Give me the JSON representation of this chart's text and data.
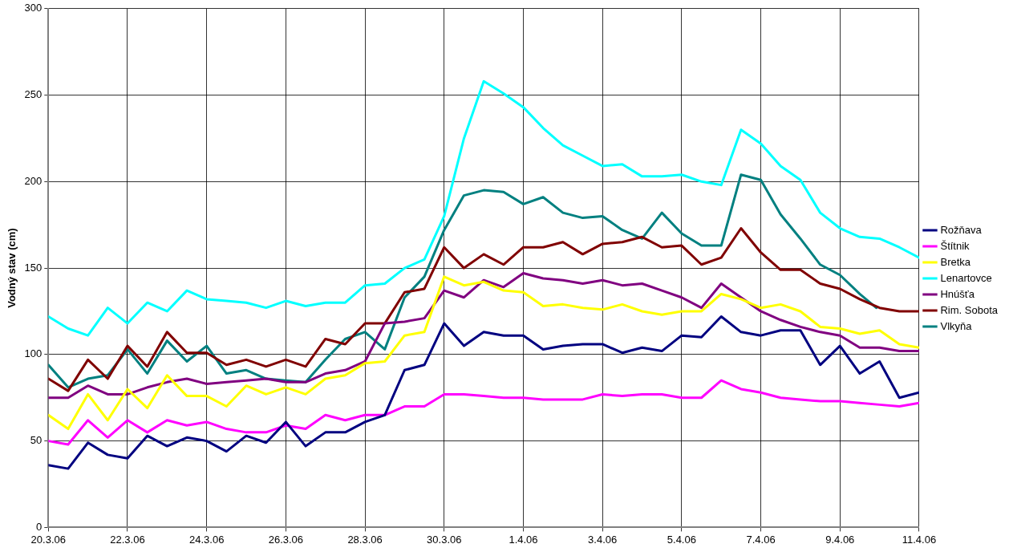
{
  "chart_data": {
    "type": "line",
    "ylabel": "Vodný stav (cm)",
    "x": [
      "--03-20T00:00",
      "--03-20T12:00",
      "--03-21T00:00",
      "--03-21T12:00",
      "--03-22T00:00",
      "--03-22T12:00",
      "--03-23T00:00",
      "--03-23T12:00",
      "--03-24T00:00",
      "--03-24T12:00",
      "--03-25T00:00",
      "--03-25T12:00",
      "--03-26T00:00",
      "--03-26T12:00",
      "--03-27T00:00",
      "--03-27T12:00",
      "--03-28T00:00",
      "--03-28T12:00",
      "--03-29T00:00",
      "--03-29T12:00",
      "--03-30T00:00",
      "--03-30T12:00",
      "--03-31T00:00",
      "--03-31T12:00",
      "--04-01T00:00",
      "--04-01T12:00",
      "--04-02T00:00",
      "--04-02T12:00",
      "--04-03T00:00",
      "--04-03T12:00",
      "--04-04T00:00",
      "--04-04T12:00",
      "--04-05T00:00",
      "--04-05T12:00",
      "--04-06T00:00",
      "--04-06T12:00",
      "--04-07T00:00",
      "--04-07T12:00",
      "--04-08T00:00",
      "--04-08T12:00",
      "--04-09T00:00",
      "--04-09T12:00",
      "--04-10T00:00",
      "--04-10T12:00",
      "--04-11T00:00"
    ],
    "series": [
      {
        "name": "Rožňava",
        "color": "#000080",
        "values": [
          36,
          34,
          49,
          42,
          40,
          53,
          47,
          52,
          50,
          44,
          53,
          49,
          61,
          47,
          55,
          55,
          61,
          65,
          91,
          94,
          118,
          105,
          113,
          111,
          111,
          103,
          105,
          106,
          106,
          101,
          104,
          102,
          111,
          110,
          122,
          113,
          111,
          114,
          114,
          94,
          105,
          89,
          96,
          75,
          78
        ]
      },
      {
        "name": "Štítnik",
        "color": "#ff00ff",
        "values": [
          50,
          48,
          62,
          52,
          62,
          55,
          62,
          59,
          61,
          57,
          55,
          55,
          59,
          57,
          65,
          62,
          65,
          65,
          70,
          70,
          77,
          77,
          76,
          75,
          75,
          74,
          74,
          74,
          77,
          76,
          77,
          77,
          75,
          75,
          85,
          80,
          78,
          75,
          74,
          73,
          73,
          72,
          71,
          70,
          72
        ]
      },
      {
        "name": "Bretka",
        "color": "#ffff00",
        "values": [
          65,
          57,
          77,
          62,
          80,
          69,
          88,
          76,
          76,
          70,
          82,
          77,
          81,
          77,
          86,
          88,
          95,
          96,
          111,
          113,
          145,
          140,
          142,
          137,
          136,
          128,
          129,
          127,
          126,
          129,
          125,
          123,
          125,
          125,
          135,
          132,
          127,
          129,
          125,
          116,
          115,
          112,
          114,
          106,
          104
        ]
      },
      {
        "name": "Lenartovce",
        "color": "#00ffff",
        "values": [
          122,
          115,
          111,
          127,
          118,
          130,
          125,
          137,
          132,
          131,
          130,
          127,
          131,
          128,
          130,
          130,
          140,
          141,
          150,
          155,
          180,
          225,
          258,
          251,
          243,
          231,
          221,
          215,
          209,
          210,
          203,
          203,
          204,
          200,
          198,
          230,
          222,
          209,
          201,
          182,
          173,
          168,
          167,
          162,
          156
        ]
      },
      {
        "name": "Hnúšťa",
        "color": "#800080",
        "values": [
          75,
          75,
          82,
          77,
          77,
          81,
          84,
          86,
          83,
          84,
          85,
          86,
          84,
          84,
          89,
          91,
          96,
          118,
          119,
          121,
          137,
          133,
          143,
          139,
          147,
          144,
          143,
          141,
          143,
          140,
          141,
          137,
          133,
          127,
          141,
          133,
          125,
          120,
          116,
          113,
          111,
          104,
          104,
          102,
          102
        ]
      },
      {
        "name": "Rim. Sobota",
        "color": "#800000",
        "values": [
          86,
          79,
          97,
          86,
          105,
          93,
          113,
          101,
          101,
          94,
          97,
          93,
          97,
          93,
          109,
          106,
          118,
          118,
          136,
          138,
          162,
          150,
          158,
          152,
          162,
          162,
          165,
          158,
          164,
          165,
          168,
          162,
          163,
          152,
          156,
          173,
          159,
          149,
          149,
          141,
          138,
          132,
          127,
          125,
          125
        ]
      },
      {
        "name": "Vlkyňa",
        "color": "#008080",
        "x": [
          "--03-20T00:00",
          "--03-20T12:00",
          "--03-21T00:00",
          "--03-21T12:00",
          "--03-22T00:00",
          "--03-22T12:00",
          "--03-23T00:00",
          "--03-23T12:00",
          "--03-24T00:00",
          "--03-24T12:00",
          "--03-25T00:00",
          "--03-25T12:00",
          "--03-26T00:00",
          "--03-26T12:00",
          "--03-27T00:00",
          "--03-27T12:00",
          "--03-28T00:00",
          "--03-28T12:00",
          "--03-29T00:00",
          "--03-29T12:00",
          "--03-30T00:00",
          "--03-30T12:00",
          "--03-31T00:00",
          "--03-31T12:00",
          "--04-01T00:00",
          "--04-01T12:00",
          "--04-02T00:00",
          "--04-02T12:00",
          "--04-03T00:00",
          "--04-03T12:00",
          "--04-04T00:00",
          "--04-04T12:00",
          "--04-05T00:00",
          "--04-05T12:00",
          "--04-06T00:00",
          "--04-06T12:00",
          "--04-07T00:00",
          "--04-07T12:00",
          "--04-08T00:00",
          "--04-08T12:00",
          "--04-09T00:00",
          "--04-09T12:00",
          "--04-09T22:00"
        ],
        "values": [
          94,
          81,
          86,
          88,
          103,
          89,
          108,
          96,
          105,
          89,
          91,
          86,
          85,
          84,
          97,
          109,
          113,
          103,
          133,
          145,
          172,
          192,
          195,
          194,
          187,
          191,
          182,
          179,
          180,
          172,
          167,
          182,
          170,
          163,
          163,
          204,
          201,
          181,
          167,
          152,
          146,
          135,
          127
        ]
      }
    ],
    "xlim": [
      "--03-20",
      "--04-11"
    ],
    "xticks": [
      {
        "value": "--03-20",
        "label": "20.3.06"
      },
      {
        "value": "--03-22",
        "label": "22.3.06"
      },
      {
        "value": "--03-24",
        "label": "24.3.06"
      },
      {
        "value": "--03-26",
        "label": "26.3.06"
      },
      {
        "value": "--03-28",
        "label": "28.3.06"
      },
      {
        "value": "--03-30",
        "label": "30.3.06"
      },
      {
        "value": "--04-01",
        "label": "1.4.06"
      },
      {
        "value": "--04-03",
        "label": "3.4.06"
      },
      {
        "value": "--04-05",
        "label": "5.4.06"
      },
      {
        "value": "--04-07",
        "label": "7.4.06"
      },
      {
        "value": "--04-09",
        "label": "9.4.06"
      },
      {
        "value": "--04-11",
        "label": "11.4.06"
      }
    ],
    "ylim": [
      0,
      300
    ],
    "yticks": [
      0,
      50,
      100,
      150,
      200,
      250,
      300
    ],
    "grid": true,
    "legend": "right",
    "marker": "none",
    "line_style": "solid"
  }
}
